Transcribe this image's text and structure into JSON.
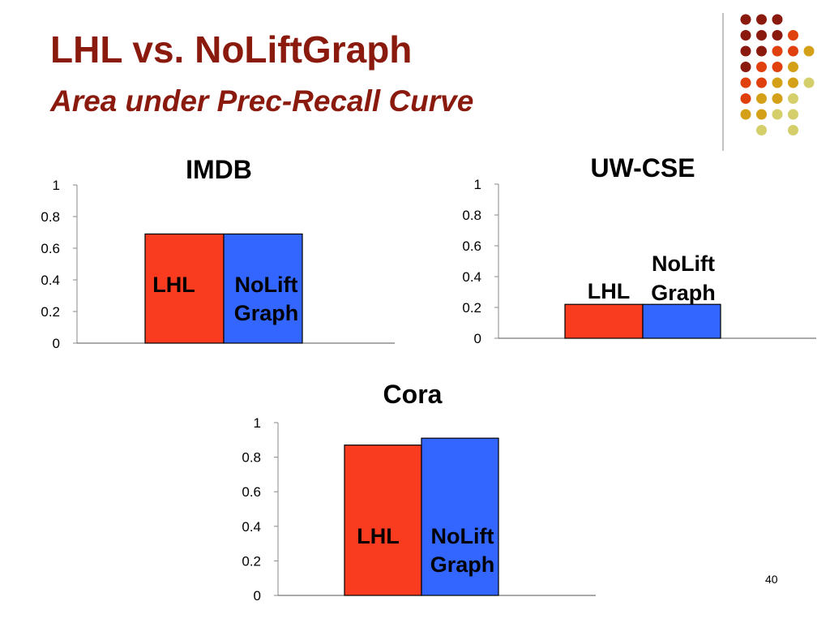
{
  "slide": {
    "title": "LHL vs. NoLiftGraph",
    "subtitle": "Area under Prec-Recall Curve",
    "page_number": "40",
    "colors": {
      "title": "#8b1a0e",
      "lhl_bar": "#f93b20",
      "noliftgraph_bar": "#3366ff",
      "dot_dark_red": "#8b1a0e",
      "dot_orange": "#e0400e",
      "dot_gold": "#d4a017",
      "dot_khaki": "#d4cf6a"
    }
  },
  "chart_data": [
    {
      "type": "bar",
      "title": "IMDB",
      "categories": [
        "LHL",
        "NoLift Graph"
      ],
      "bar_labels": [
        [
          "LHL"
        ],
        [
          "NoLift",
          "Graph"
        ]
      ],
      "values": [
        0.69,
        0.69
      ],
      "yticks": [
        "0",
        "0.2",
        "0.4",
        "0.6",
        "0.8",
        "1"
      ],
      "ylim": [
        0,
        1
      ]
    },
    {
      "type": "bar",
      "title": "UW-CSE",
      "categories": [
        "LHL",
        "NoLift Graph"
      ],
      "bar_labels": [
        [
          "LHL"
        ],
        [
          "NoLift",
          "Graph"
        ]
      ],
      "values": [
        0.22,
        0.22
      ],
      "yticks": [
        "0",
        "0.2",
        "0.4",
        "0.6",
        "0.8",
        "1"
      ],
      "ylim": [
        0,
        1
      ]
    },
    {
      "type": "bar",
      "title": "Cora",
      "categories": [
        "LHL",
        "NoLift Graph"
      ],
      "bar_labels": [
        [
          "LHL"
        ],
        [
          "NoLift",
          "Graph"
        ]
      ],
      "values": [
        0.87,
        0.91
      ],
      "yticks": [
        "0",
        "0.2",
        "0.4",
        "0.6",
        "0.8",
        "1"
      ],
      "ylim": [
        0,
        1
      ]
    }
  ]
}
